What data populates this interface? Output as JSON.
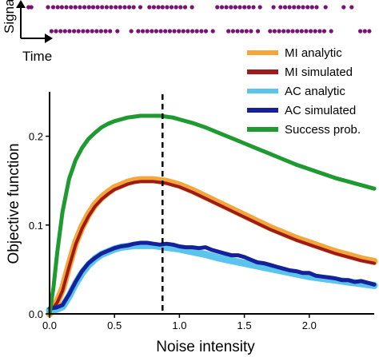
{
  "chart_data": {
    "type": "line",
    "title": "",
    "xlabel": "Noise intensity",
    "ylabel": "Objective function",
    "xlim": [
      0,
      2.5
    ],
    "ylim": [
      0,
      0.25
    ],
    "xticks": [
      0.0,
      0.5,
      1.0,
      1.5,
      2.0
    ],
    "xtick_labels": [
      "0.0",
      "0.5",
      "1.0",
      "1.5",
      "2.0"
    ],
    "yticks": [
      0.0,
      0.1,
      0.2
    ],
    "ytick_labels": [
      "0.0",
      "0.1",
      "0.2"
    ],
    "grid": false,
    "legend_position": "top-right",
    "vline_x": 0.87,
    "series": [
      {
        "name": "MI analytic",
        "color": "#f5a53a",
        "x": [
          0,
          0.03,
          0.06,
          0.1,
          0.15,
          0.2,
          0.25,
          0.3,
          0.35,
          0.4,
          0.45,
          0.5,
          0.55,
          0.6,
          0.65,
          0.7,
          0.75,
          0.8,
          0.85,
          0.9,
          0.95,
          1.0,
          1.1,
          1.2,
          1.3,
          1.4,
          1.5,
          1.6,
          1.7,
          1.8,
          1.9,
          2.0,
          2.1,
          2.2,
          2.3,
          2.4,
          2.5
        ],
        "y": [
          0.0,
          0.008,
          0.014,
          0.028,
          0.055,
          0.08,
          0.098,
          0.112,
          0.123,
          0.131,
          0.137,
          0.142,
          0.145,
          0.148,
          0.15,
          0.151,
          0.151,
          0.151,
          0.15,
          0.149,
          0.147,
          0.145,
          0.139,
          0.132,
          0.125,
          0.118,
          0.111,
          0.104,
          0.097,
          0.091,
          0.085,
          0.08,
          0.075,
          0.07,
          0.066,
          0.062,
          0.059
        ]
      },
      {
        "name": "MI simulated",
        "color": "#9e1b1b",
        "x": [
          0,
          0.03,
          0.06,
          0.1,
          0.15,
          0.2,
          0.25,
          0.3,
          0.35,
          0.4,
          0.45,
          0.5,
          0.55,
          0.6,
          0.65,
          0.7,
          0.75,
          0.8,
          0.85,
          0.9,
          0.95,
          1.0,
          1.1,
          1.2,
          1.3,
          1.4,
          1.5,
          1.6,
          1.7,
          1.8,
          1.9,
          2.0,
          2.1,
          2.2,
          2.3,
          2.4,
          2.5
        ],
        "y": [
          0.0,
          0.007,
          0.013,
          0.026,
          0.053,
          0.078,
          0.096,
          0.11,
          0.121,
          0.129,
          0.135,
          0.14,
          0.143,
          0.146,
          0.148,
          0.149,
          0.149,
          0.149,
          0.148,
          0.147,
          0.145,
          0.143,
          0.137,
          0.13,
          0.123,
          0.116,
          0.109,
          0.102,
          0.095,
          0.089,
          0.083,
          0.078,
          0.073,
          0.068,
          0.064,
          0.06,
          0.057
        ]
      },
      {
        "name": "AC analytic",
        "color": "#5bc4ec",
        "x": [
          0,
          0.05,
          0.1,
          0.15,
          0.2,
          0.25,
          0.3,
          0.35,
          0.4,
          0.45,
          0.5,
          0.55,
          0.6,
          0.65,
          0.7,
          0.75,
          0.8,
          0.85,
          0.9,
          0.95,
          1.0,
          1.1,
          1.2,
          1.3,
          1.4,
          1.5,
          1.6,
          1.7,
          1.8,
          1.9,
          2.0,
          2.1,
          2.2,
          2.3,
          2.4,
          2.5
        ],
        "y": [
          0.004,
          0.005,
          0.008,
          0.02,
          0.034,
          0.046,
          0.055,
          0.062,
          0.067,
          0.07,
          0.073,
          0.075,
          0.076,
          0.077,
          0.077,
          0.077,
          0.077,
          0.076,
          0.075,
          0.074,
          0.073,
          0.07,
          0.067,
          0.063,
          0.06,
          0.057,
          0.054,
          0.051,
          0.048,
          0.045,
          0.042,
          0.04,
          0.038,
          0.036,
          0.034,
          0.032
        ]
      },
      {
        "name": "AC simulated",
        "color": "#14219a",
        "x": [
          0,
          0.05,
          0.1,
          0.15,
          0.2,
          0.25,
          0.3,
          0.35,
          0.4,
          0.45,
          0.5,
          0.55,
          0.6,
          0.65,
          0.7,
          0.75,
          0.8,
          0.85,
          0.9,
          0.95,
          1.0,
          1.05,
          1.1,
          1.15,
          1.2,
          1.25,
          1.3,
          1.35,
          1.4,
          1.45,
          1.5,
          1.55,
          1.6,
          1.65,
          1.7,
          1.75,
          1.8,
          1.85,
          1.9,
          1.95,
          2.0,
          2.05,
          2.1,
          2.15,
          2.2,
          2.25,
          2.3,
          2.35,
          2.4,
          2.45,
          2.5
        ],
        "y": [
          0.006,
          0.007,
          0.01,
          0.022,
          0.036,
          0.048,
          0.057,
          0.063,
          0.068,
          0.071,
          0.074,
          0.076,
          0.077,
          0.079,
          0.08,
          0.08,
          0.079,
          0.078,
          0.079,
          0.078,
          0.076,
          0.075,
          0.075,
          0.074,
          0.075,
          0.072,
          0.07,
          0.068,
          0.066,
          0.066,
          0.064,
          0.061,
          0.058,
          0.057,
          0.055,
          0.053,
          0.051,
          0.049,
          0.048,
          0.046,
          0.046,
          0.043,
          0.042,
          0.041,
          0.04,
          0.038,
          0.038,
          0.036,
          0.037,
          0.035,
          0.033
        ]
      },
      {
        "name": "Success prob.",
        "color": "#1f9a31",
        "x": [
          0,
          0.03,
          0.06,
          0.1,
          0.15,
          0.2,
          0.25,
          0.3,
          0.35,
          0.4,
          0.45,
          0.5,
          0.55,
          0.6,
          0.65,
          0.7,
          0.75,
          0.8,
          0.85,
          0.9,
          0.95,
          1.0,
          1.1,
          1.2,
          1.3,
          1.4,
          1.5,
          1.6,
          1.7,
          1.8,
          1.9,
          2.0,
          2.1,
          2.2,
          2.3,
          2.4,
          2.5
        ],
        "y": [
          0.0,
          0.03,
          0.07,
          0.115,
          0.152,
          0.173,
          0.187,
          0.197,
          0.204,
          0.21,
          0.214,
          0.217,
          0.219,
          0.221,
          0.222,
          0.223,
          0.223,
          0.223,
          0.223,
          0.222,
          0.221,
          0.219,
          0.215,
          0.21,
          0.204,
          0.198,
          0.192,
          0.186,
          0.18,
          0.174,
          0.168,
          0.163,
          0.158,
          0.153,
          0.149,
          0.145,
          0.141
        ]
      }
    ]
  },
  "inset": {
    "ylabel": "Signal",
    "xlabel": "Time",
    "dot_color": "#7a1273",
    "rows": [
      {
        "t": [
          0.004,
          0.012,
          0.06,
          0.075,
          0.088,
          0.1,
          0.113,
          0.126,
          0.139,
          0.152,
          0.165,
          0.178,
          0.19,
          0.203,
          0.216,
          0.229,
          0.242,
          0.255,
          0.268,
          0.281,
          0.294,
          0.307,
          0.326,
          0.352,
          0.365,
          0.378,
          0.39,
          0.403,
          0.416,
          0.429,
          0.442,
          0.455,
          0.475,
          0.548,
          0.561,
          0.574,
          0.587,
          0.6,
          0.613,
          0.626,
          0.639,
          0.652,
          0.671,
          0.71,
          0.73,
          0.743,
          0.756,
          0.769,
          0.782,
          0.795,
          0.808,
          0.821,
          0.834,
          0.86,
          0.912,
          0.935
        ]
      },
      {
        "t": [
          0.07,
          0.083,
          0.096,
          0.109,
          0.122,
          0.135,
          0.148,
          0.161,
          0.174,
          0.187,
          0.2,
          0.213,
          0.226,
          0.239,
          0.26,
          0.3,
          0.32,
          0.333,
          0.346,
          0.359,
          0.372,
          0.385,
          0.398,
          0.411,
          0.424,
          0.437,
          0.45,
          0.463,
          0.476,
          0.489,
          0.502,
          0.515,
          0.535,
          0.58,
          0.593,
          0.606,
          0.619,
          0.632,
          0.645,
          0.665,
          0.7,
          0.713,
          0.726,
          0.739,
          0.752,
          0.765,
          0.778,
          0.791,
          0.804,
          0.817,
          0.83,
          0.843,
          0.856,
          0.876,
          0.96,
          0.973,
          0.986
        ]
      }
    ]
  }
}
